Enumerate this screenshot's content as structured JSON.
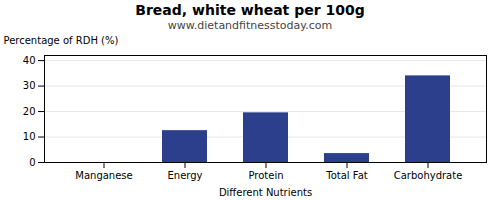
{
  "chart_data": {
    "type": "bar",
    "title": "Bread, white wheat per 100g",
    "subtitle": "www.dietandfitnesstoday.com",
    "xlabel": "Different Nutrients",
    "ylabel": "Percentage of RDH (%)",
    "categories": [
      "Manganese",
      "Energy",
      "Protein",
      "Total Fat",
      "Carbohydrate"
    ],
    "values": [
      0.0,
      12.5,
      19.5,
      3.5,
      34.0
    ],
    "color": "#2b3f8c",
    "ylim": [
      0,
      42
    ],
    "yticks": [
      0,
      10,
      20,
      30,
      40
    ],
    "grid": true
  }
}
